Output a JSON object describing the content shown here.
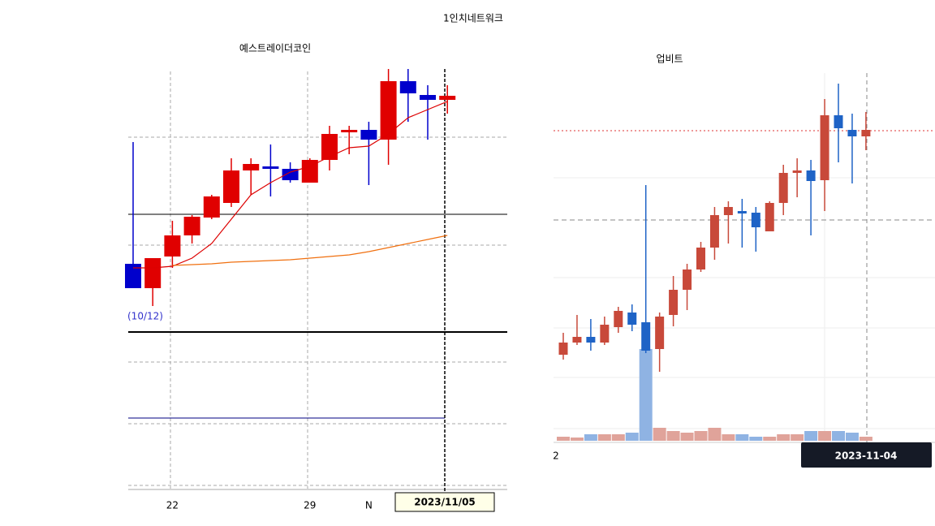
{
  "header": {
    "title": "1인치네트워크"
  },
  "chart_data": [
    {
      "type": "candlestick",
      "title": "예스트레이더코인",
      "annotation": "(10/12)",
      "cursor_label": "2023/11/05",
      "categories": [
        null,
        null,
        "22",
        null,
        null,
        null,
        null,
        null,
        null,
        "29",
        null,
        null,
        "N",
        null,
        null,
        null,
        null
      ],
      "open": [
        75,
        45,
        84,
        110,
        132,
        150,
        190,
        195,
        192,
        175,
        203,
        237,
        240,
        228,
        300,
        283,
        277
      ],
      "high": [
        225,
        82,
        128,
        135,
        160,
        205,
        205,
        222,
        200,
        205,
        245,
        245,
        250,
        315,
        315,
        295,
        295
      ],
      "low": [
        45,
        23,
        70,
        100,
        130,
        145,
        160,
        158,
        175,
        175,
        190,
        210,
        172,
        197,
        250,
        228,
        260
      ],
      "close": [
        45,
        82,
        110,
        133,
        158,
        190,
        198,
        192,
        178,
        203,
        235,
        240,
        228,
        300,
        285,
        277,
        282
      ],
      "up_color": "#e00000",
      "down_color": "#0000cc",
      "ylim": [
        0,
        320
      ],
      "ma": [
        {
          "color": "#dd0000",
          "values": [
            70,
            70,
            72,
            82,
            100,
            130,
            160,
            175,
            188,
            195,
            207,
            218,
            220,
            235,
            255,
            265,
            275
          ]
        },
        {
          "color": "#f07010",
          "values": [
            null,
            null,
            73,
            74,
            75,
            77,
            78,
            79,
            80,
            82,
            84,
            86,
            90,
            95,
            100,
            105,
            110
          ]
        }
      ]
    },
    {
      "type": "candlestick",
      "title": "업비트",
      "cursor_label": "2023-11-04",
      "categories": [
        "2",
        null,
        null,
        null,
        null,
        null,
        null,
        null,
        null,
        null,
        null,
        null,
        null,
        null,
        null,
        null,
        null,
        null,
        null,
        null,
        null,
        null,
        null
      ],
      "open": [
        108,
        123,
        130,
        123,
        142,
        160,
        148,
        115,
        157,
        188,
        213,
        240,
        280,
        285,
        283,
        260,
        295,
        332,
        335,
        323,
        403,
        385,
        377
      ],
      "high": [
        135,
        157,
        152,
        155,
        167,
        170,
        317,
        160,
        205,
        220,
        247,
        290,
        297,
        300,
        290,
        297,
        342,
        350,
        348,
        423,
        442,
        405,
        407
      ],
      "low": [
        102,
        120,
        113,
        120,
        135,
        137,
        110,
        87,
        143,
        163,
        210,
        225,
        245,
        240,
        235,
        260,
        280,
        302,
        255,
        285,
        345,
        319,
        360
      ],
      "close": [
        123,
        130,
        123,
        145,
        162,
        145,
        113,
        155,
        188,
        213,
        240,
        280,
        290,
        283,
        265,
        295,
        332,
        335,
        322,
        403,
        387,
        377,
        385
      ],
      "volume": [
        5,
        4,
        8,
        8,
        8,
        10,
        113,
        16,
        12,
        10,
        12,
        16,
        8,
        8,
        5,
        5,
        8,
        8,
        12,
        12,
        12,
        10,
        5
      ],
      "volume_ylim": [
        0,
        120
      ],
      "up_color": "#c8493a",
      "down_color": "#1e63c6",
      "volume_up_color": "#e0a39a",
      "volume_down_color": "#8fb3e3",
      "ylim": [
        0,
        450
      ]
    }
  ]
}
